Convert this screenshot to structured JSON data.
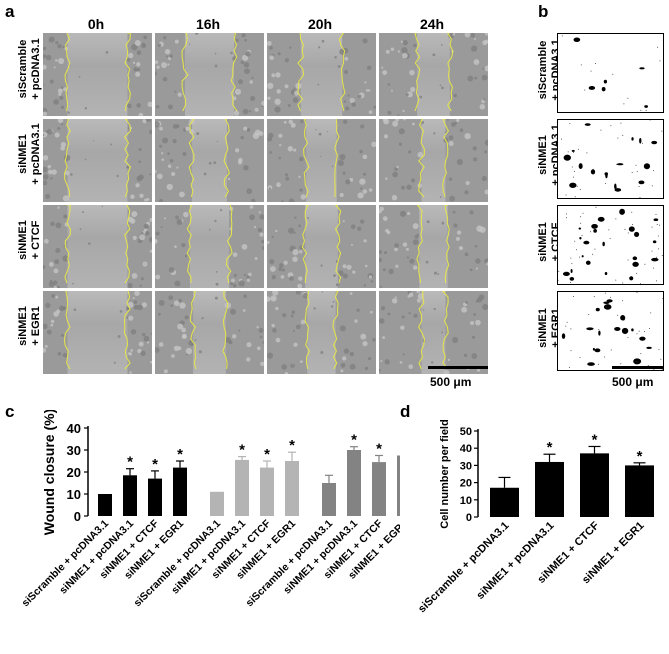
{
  "panels": {
    "a": "a",
    "b": "b",
    "c": "c",
    "d": "d"
  },
  "panel_a": {
    "columns": [
      "0h",
      "16h",
      "20h",
      "24h"
    ],
    "rows": [
      {
        "line1": "siScramble",
        "line2": "+ pcDNA3.1"
      },
      {
        "line1": "siNME1",
        "line2": "+ pcDNA3.1"
      },
      {
        "line1": "siNME1",
        "line2": "+ CTCF"
      },
      {
        "line1": "siNME1",
        "line2": "+ EGR1"
      }
    ],
    "scale_bar": "500 μm",
    "wound_gap_fraction": [
      [
        0.55,
        0.45,
        0.38,
        0.3
      ],
      [
        0.55,
        0.32,
        0.28,
        0.22
      ],
      [
        0.55,
        0.36,
        0.3,
        0.26
      ],
      [
        0.55,
        0.3,
        0.26,
        0.22
      ]
    ]
  },
  "panel_b": {
    "rows": [
      {
        "line1": "siScramble",
        "line2": "+ pcDNA3.1"
      },
      {
        "line1": "siNME1",
        "line2": "+ pcDNA3.1"
      },
      {
        "line1": "siNME1",
        "line2": "+ CTCF"
      },
      {
        "line1": "siNME1",
        "line2": "+ EGR1"
      }
    ],
    "scale_bar": "500 μm"
  },
  "chart_data": [
    {
      "type": "bar",
      "ylabel": "Wound closure (%)",
      "ylim": [
        0,
        40
      ],
      "yticks": [
        0,
        10,
        20,
        30,
        40
      ],
      "groups": [
        {
          "color": "#000000",
          "categories": [
            "siScramble + pcDNA3.1",
            "siNME1 + pcDNA3.1",
            "siNME1 + CTCF",
            "siNME1 + EGR1"
          ],
          "values": [
            10,
            18.5,
            17,
            22
          ],
          "errors": [
            0,
            3,
            3.5,
            3
          ],
          "significant": [
            false,
            true,
            true,
            true
          ]
        },
        {
          "color": "#b4b4b4",
          "categories": [
            "siScramble + pcDNA3.1",
            "siNME1 + pcDNA3.1",
            "siNME1 + CTCF",
            "siNME1 + EGR1"
          ],
          "values": [
            11,
            25.5,
            22,
            25
          ],
          "errors": [
            0,
            1.5,
            3,
            4
          ],
          "significant": [
            false,
            true,
            true,
            true
          ]
        },
        {
          "color": "#838383",
          "categories": [
            "siScramble + pcDNA3.1",
            "siNME1 + pcDNA3.1",
            "siNME1 + CTCF",
            "siNME1 + EGR1"
          ],
          "values": [
            15,
            30,
            24.5,
            27.5
          ],
          "errors": [
            3.5,
            1.5,
            3,
            3
          ],
          "significant": [
            false,
            true,
            true,
            true
          ]
        }
      ],
      "sig_marker": "*"
    },
    {
      "type": "bar",
      "ylabel": "Cell number per field",
      "ylim": [
        0,
        50
      ],
      "yticks": [
        0,
        10,
        20,
        30,
        40,
        50
      ],
      "categories": [
        "siScramble + pcDNA3.1",
        "siNME1 + pcDNA3.1",
        "siNME1 + CTCF",
        "siNME1 + EGR1"
      ],
      "values": [
        17,
        32,
        37,
        30
      ],
      "errors": [
        6,
        4.5,
        4,
        1.5
      ],
      "significant": [
        false,
        true,
        true,
        true
      ],
      "color": "#000000",
      "sig_marker": "*"
    }
  ]
}
